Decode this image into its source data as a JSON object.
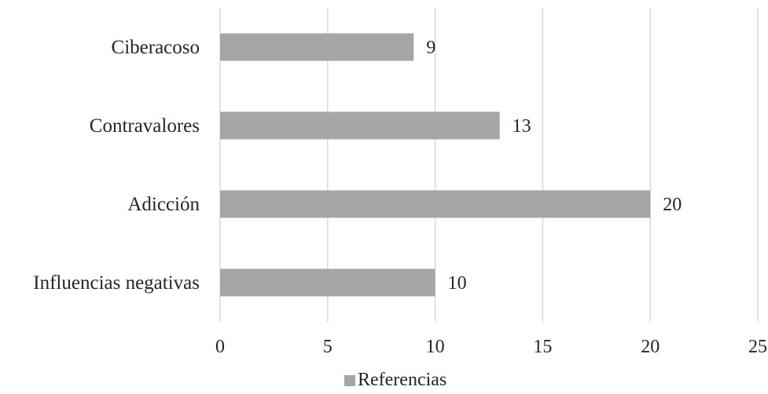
{
  "chart_data": {
    "type": "bar",
    "orientation": "horizontal",
    "categories": [
      "Ciberacoso",
      "Contravalores",
      "Adicción",
      "Influencias negativas"
    ],
    "series": [
      {
        "name": "Referencias",
        "values": [
          9,
          13,
          20,
          10
        ],
        "color": "#a6a6a8"
      }
    ],
    "xlim": [
      0,
      25
    ],
    "x_ticks": [
      0,
      5,
      10,
      15,
      20,
      25
    ],
    "grid": "vertical",
    "legend_position": "bottom",
    "data_labels": true
  }
}
